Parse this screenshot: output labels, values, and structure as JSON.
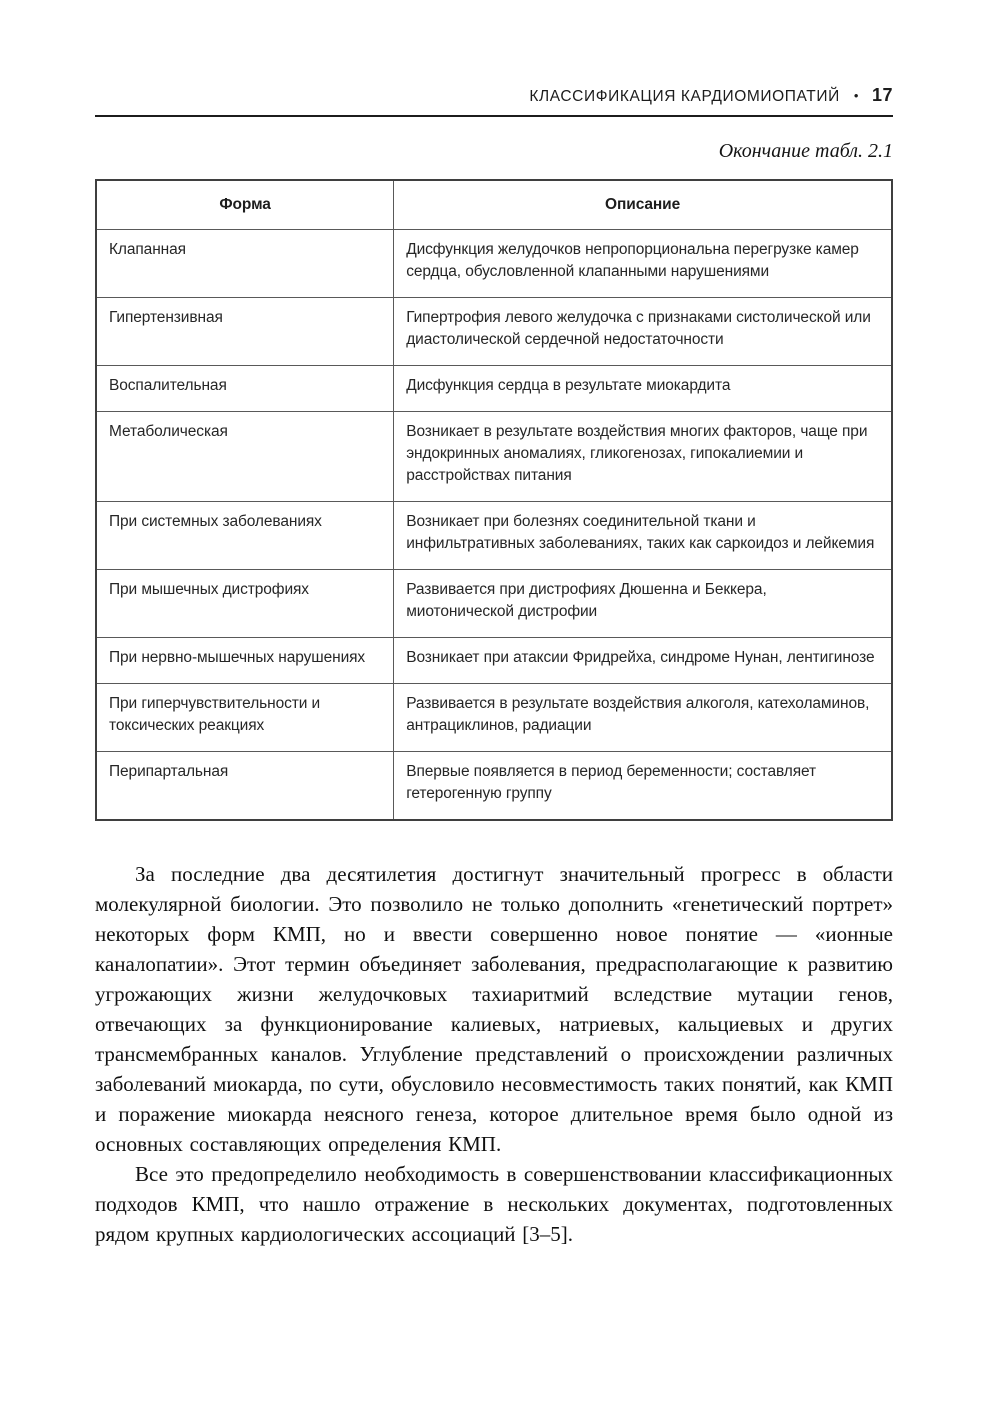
{
  "header": {
    "running_title": "КЛАССИФИКАЦИЯ КАРДИОМИОПАТИЙ",
    "bullet": "•",
    "page_number": "17"
  },
  "table_caption": "Окончание табл. 2.1",
  "table": {
    "columns": [
      "Форма",
      "Описание"
    ],
    "rows": [
      {
        "form": "Клапанная",
        "description": "Дисфункция желудочков непропорциональна перегрузке камер сердца, обусловленной клапанными нарушениями"
      },
      {
        "form": "Гипертензивная",
        "description": "Гипертрофия левого желудочка с признаками систолической или диастолической сердечной недостаточности"
      },
      {
        "form": "Воспалительная",
        "description": "Дисфункция сердца в результате миокардита"
      },
      {
        "form": "Метаболическая",
        "description": "Возникает в результате воздействия многих факторов, чаще при эндокринных аномалиях, гликогенозах, гипокалиемии и расстройствах питания"
      },
      {
        "form": "При системных заболеваниях",
        "description": "Возникает при болезнях соединительной ткани и инфильтративных заболеваниях, таких как саркоидоз и лейкемия"
      },
      {
        "form": "При мышечных дистрофиях",
        "description": "Развивается при дистрофиях Дюшенна и Беккера, миотонической дистрофии"
      },
      {
        "form": "При нервно-мышечных нарушениях",
        "description": "Возникает при атаксии Фридрейха, синдроме Нунан, лентигинозе"
      },
      {
        "form": "При гиперчувствительности и токсических реакциях",
        "description": "Развивается в результате воздействия алкоголя, катехоламинов, антрациклинов, радиации"
      },
      {
        "form": "Перипартальная",
        "description": "Впервые появляется в период беременности; составляет гетерогенную группу"
      }
    ]
  },
  "paragraphs": [
    "За последние два десятилетия достигнут значительный прогресс в области молекулярной биологии. Это позволило не только дополнить «генетический портрет» некоторых форм КМП, но и ввести совершенно новое понятие — «ионные каналопатии». Этот термин объединяет заболевания, предрасполагающие к развитию угрожающих жизни желудочковых тахиаритмий вследствие мутации генов, отвечающих за функционирование калиевых, натриевых, кальциевых и других трансмембранных каналов. Углубление представлений о происхождении различных заболеваний миокарда, по сути, обусловило несовместимость таких понятий, как КМП и поражение миокарда неясного генеза, которое длительное время было одной из основных составляющих определения КМП.",
    "Все это предопределило необходимость в совершенствовании классификационных подходов КМП, что нашло отражение в нескольких документах, подготовленных рядом крупных кардиологических ассоциаций [3–5]."
  ]
}
